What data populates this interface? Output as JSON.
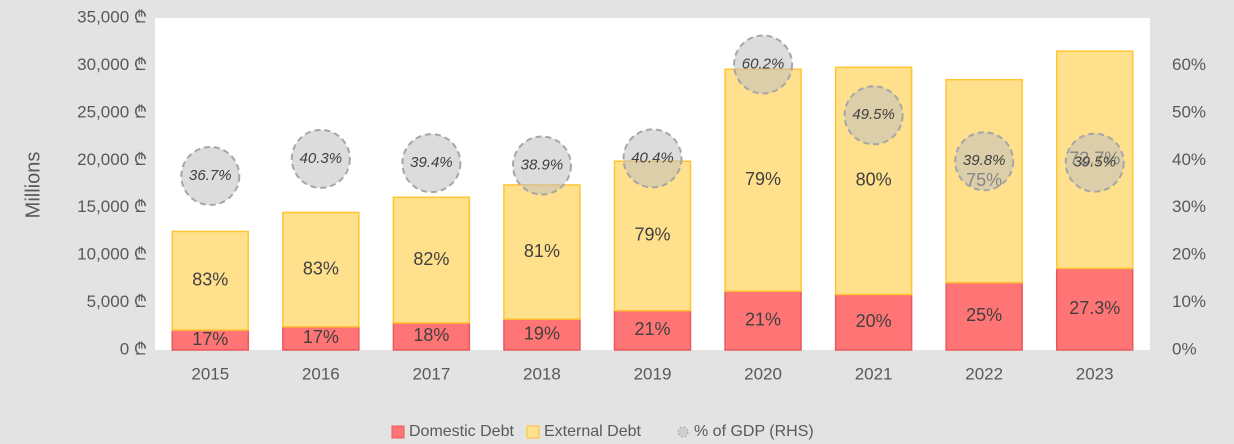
{
  "chart_data": {
    "type": "stacked_bar_with_bubbles",
    "y_label": "Millions",
    "categories": [
      "2015",
      "2016",
      "2017",
      "2018",
      "2019",
      "2020",
      "2021",
      "2022",
      "2023"
    ],
    "series": [
      {
        "name": "Domestic Debt",
        "color": "#ff7575",
        "border": "#e8595e",
        "values": [
          2100,
          2450,
          2850,
          3250,
          4150,
          6200,
          5850,
          7100,
          8600
        ],
        "share_labels": [
          "17%",
          "17%",
          "18%",
          "19%",
          "21%",
          "21%",
          "20%",
          "25%",
          "27.3%"
        ]
      },
      {
        "name": "External Debt",
        "color": "#ffe08c",
        "border": "#ffc533",
        "values": [
          10400,
          12050,
          13250,
          14150,
          15750,
          23400,
          23950,
          21400,
          22900
        ],
        "share_labels": [
          "83%",
          "83%",
          "82%",
          "81%",
          "79%",
          "79%",
          "80%",
          "75%",
          "72.7%"
        ]
      },
      {
        "name": "% of GDP (RHS)",
        "axis": "y2",
        "color": "#bfbfbf",
        "border": "#a6a6a6",
        "values": [
          36.7,
          40.3,
          39.4,
          38.9,
          40.4,
          60.2,
          49.5,
          39.8,
          39.5
        ],
        "value_labels": [
          "36.7%",
          "40.3%",
          "39.4%",
          "38.9%",
          "40.4%",
          "60.2%",
          "49.5%",
          "39.8%",
          "39.5%"
        ]
      }
    ],
    "ylim": [
      0,
      35000
    ],
    "yticks": [
      {
        "value": 0,
        "label": "0 ₾"
      },
      {
        "value": 5000,
        "label": "5,000 ₾"
      },
      {
        "value": 10000,
        "label": "10,000 ₾"
      },
      {
        "value": 15000,
        "label": "15,000 ₾"
      },
      {
        "value": 20000,
        "label": "20,000 ₾"
      },
      {
        "value": 25000,
        "label": "25,000 ₾"
      },
      {
        "value": 30000,
        "label": "30,000 ₾"
      },
      {
        "value": 35000,
        "label": "35,000 ₾"
      }
    ],
    "y2lim": [
      0,
      70
    ],
    "y2ticks": [
      {
        "value": 0,
        "label": "0%"
      },
      {
        "value": 10,
        "label": "10%"
      },
      {
        "value": 20,
        "label": "20%"
      },
      {
        "value": 30,
        "label": "30%"
      },
      {
        "value": 40,
        "label": "40%"
      },
      {
        "value": 50,
        "label": "50%"
      },
      {
        "value": 60,
        "label": "60%"
      }
    ],
    "legend": "bottom"
  }
}
